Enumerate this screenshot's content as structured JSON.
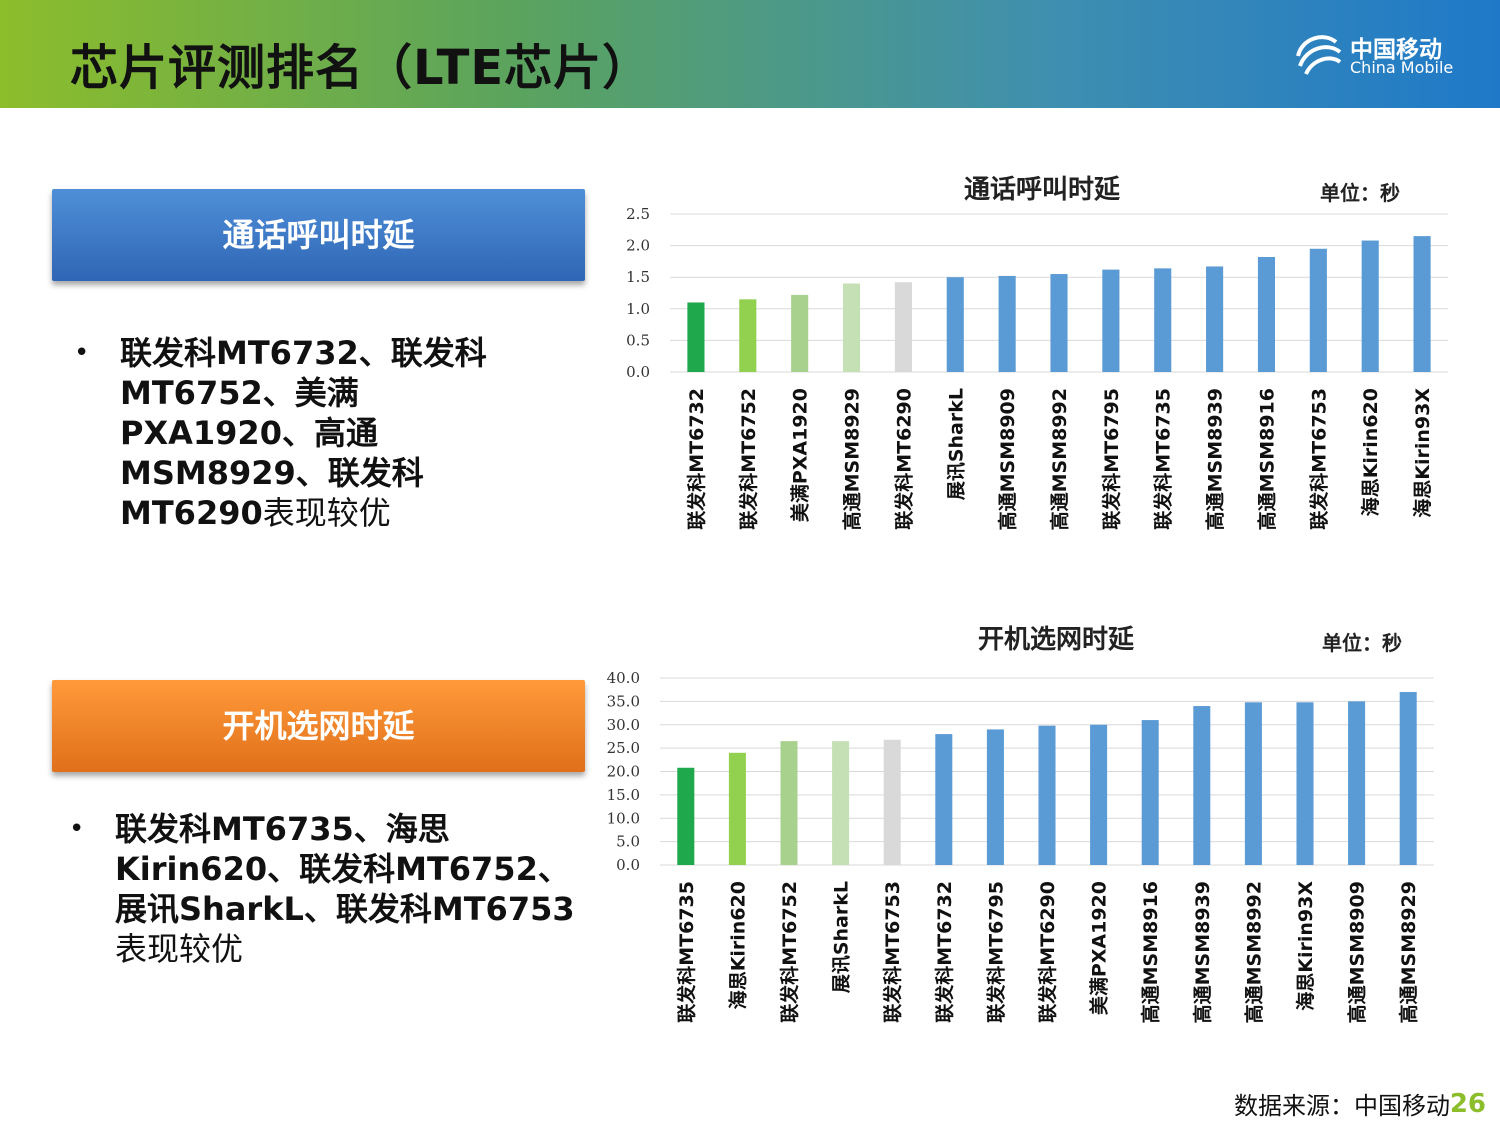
{
  "header": {
    "title": "芯片评测排名（LTE芯片）",
    "logo_cn": "中国移动",
    "logo_en": "China Mobile"
  },
  "section1": {
    "label": "通话呼叫时延",
    "bullet_bold": "联发科MT6732、联发科MT6752、美满PXA1920、高通MSM8929、联发科MT6290",
    "bullet_tail": "表现较优"
  },
  "section2": {
    "label": "开机选网时延",
    "bullet_bold": "联发科MT6735、海思Kirin620、联发科MT6752、展讯SharkL、联发科MT6753",
    "bullet_tail": "表现较优"
  },
  "footer": {
    "source": "数据来源：中国移动",
    "page": "26"
  },
  "colors": {
    "dark_green": "#1fa84c",
    "green": "#92d050",
    "light_green": "#a9d18e",
    "pale_green": "#c5e0b4",
    "gray": "#d9d9d9",
    "blue": "#5b9bd5"
  },
  "chart_data": [
    {
      "type": "bar",
      "title": "通话呼叫时延",
      "unit": "单位：秒",
      "ylim": [
        0,
        2.5
      ],
      "yticks": [
        "0.0",
        "0.5",
        "1.0",
        "1.5",
        "2.0",
        "2.5"
      ],
      "grid": true,
      "categories": [
        "联发科MT6732",
        "联发科MT6752",
        "美满PXA1920",
        "高通MSM8929",
        "联发科MT6290",
        "展讯SharkL",
        "高通MSM8909",
        "高通MSM8992",
        "联发科MT6795",
        "联发科MT6735",
        "高通MSM8939",
        "高通MSM8916",
        "联发科MT6753",
        "海思Kirin620",
        "海思Kirin93X"
      ],
      "values": [
        1.1,
        1.15,
        1.22,
        1.4,
        1.42,
        1.5,
        1.52,
        1.55,
        1.62,
        1.64,
        1.67,
        1.82,
        1.95,
        2.08,
        2.15
      ],
      "bar_colors": [
        "#1fa84c",
        "#92d050",
        "#a9d18e",
        "#c5e0b4",
        "#d9d9d9",
        "#5b9bd5",
        "#5b9bd5",
        "#5b9bd5",
        "#5b9bd5",
        "#5b9bd5",
        "#5b9bd5",
        "#5b9bd5",
        "#5b9bd5",
        "#5b9bd5",
        "#5b9bd5"
      ]
    },
    {
      "type": "bar",
      "title": "开机选网时延",
      "unit": "单位：秒",
      "ylim": [
        0,
        40
      ],
      "yticks": [
        "0.0",
        "5.0",
        "10.0",
        "15.0",
        "20.0",
        "25.0",
        "30.0",
        "35.0",
        "40.0"
      ],
      "grid": true,
      "categories": [
        "联发科MT6735",
        "海思Kirin620",
        "联发科MT6752",
        "展讯SharkL",
        "联发科MT6753",
        "联发科MT6732",
        "联发科MT6795",
        "联发科MT6290",
        "美满PXA1920",
        "高通MSM8916",
        "高通MSM8939",
        "高通MSM8992",
        "海思Kirin93X",
        "高通MSM8909",
        "高通MSM8929"
      ],
      "values": [
        20.8,
        24.0,
        26.5,
        26.5,
        26.8,
        28.0,
        29.0,
        29.8,
        30.0,
        31.0,
        34.0,
        34.8,
        34.8,
        35.0,
        37.0
      ],
      "bar_colors": [
        "#1fa84c",
        "#92d050",
        "#a9d18e",
        "#c5e0b4",
        "#d9d9d9",
        "#5b9bd5",
        "#5b9bd5",
        "#5b9bd5",
        "#5b9bd5",
        "#5b9bd5",
        "#5b9bd5",
        "#5b9bd5",
        "#5b9bd5",
        "#5b9bd5",
        "#5b9bd5"
      ]
    }
  ]
}
